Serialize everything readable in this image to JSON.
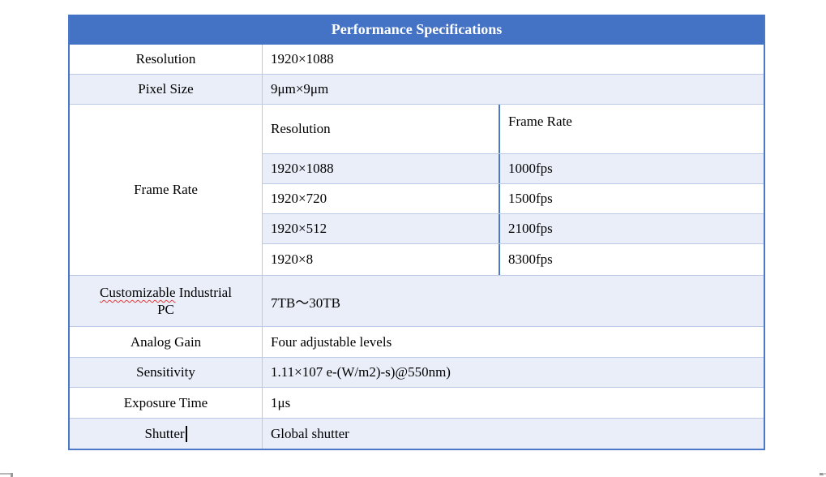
{
  "table": {
    "title": "Performance Specifications",
    "rows": {
      "resolution": {
        "label": "Resolution",
        "value": "1920×1088"
      },
      "pixel_size": {
        "label": "Pixel Size",
        "value": "9μm×9μm"
      },
      "frame_rate": {
        "label": "Frame Rate",
        "sub_headers": {
          "resolution": "Resolution",
          "frame_rate": "Frame Rate"
        },
        "entries": [
          {
            "resolution": "1920×1088",
            "fps": "1000fps"
          },
          {
            "resolution": "1920×720",
            "fps": "1500fps"
          },
          {
            "resolution": "1920×512",
            "fps": "2100fps"
          },
          {
            "resolution": "1920×8",
            "fps": "8300fps"
          }
        ]
      },
      "industrial_pc": {
        "label_misspelled_word": "Customizable",
        "label_line1_rest": " Industrial",
        "label_line2": "PC",
        "value": "7TB～30TB"
      },
      "analog_gain": {
        "label": "Analog Gain",
        "value": "Four adjustable levels"
      },
      "sensitivity": {
        "label": "Sensitivity",
        "value": "1.11×107 e-(W/m2)-s)@550nm)"
      },
      "exposure_time": {
        "label": "Exposure Time",
        "value": "1μs"
      },
      "shutter": {
        "label": "Shutter",
        "value": "Global shutter"
      }
    }
  },
  "colors": {
    "header_fill": "#4472C4",
    "header_text": "#FFFFFF",
    "band_fill": "#E9EEF9",
    "divider": "#BCCAE8",
    "outer_border": "#4C79C7",
    "spellcheck_underline": "#E03A3A"
  }
}
